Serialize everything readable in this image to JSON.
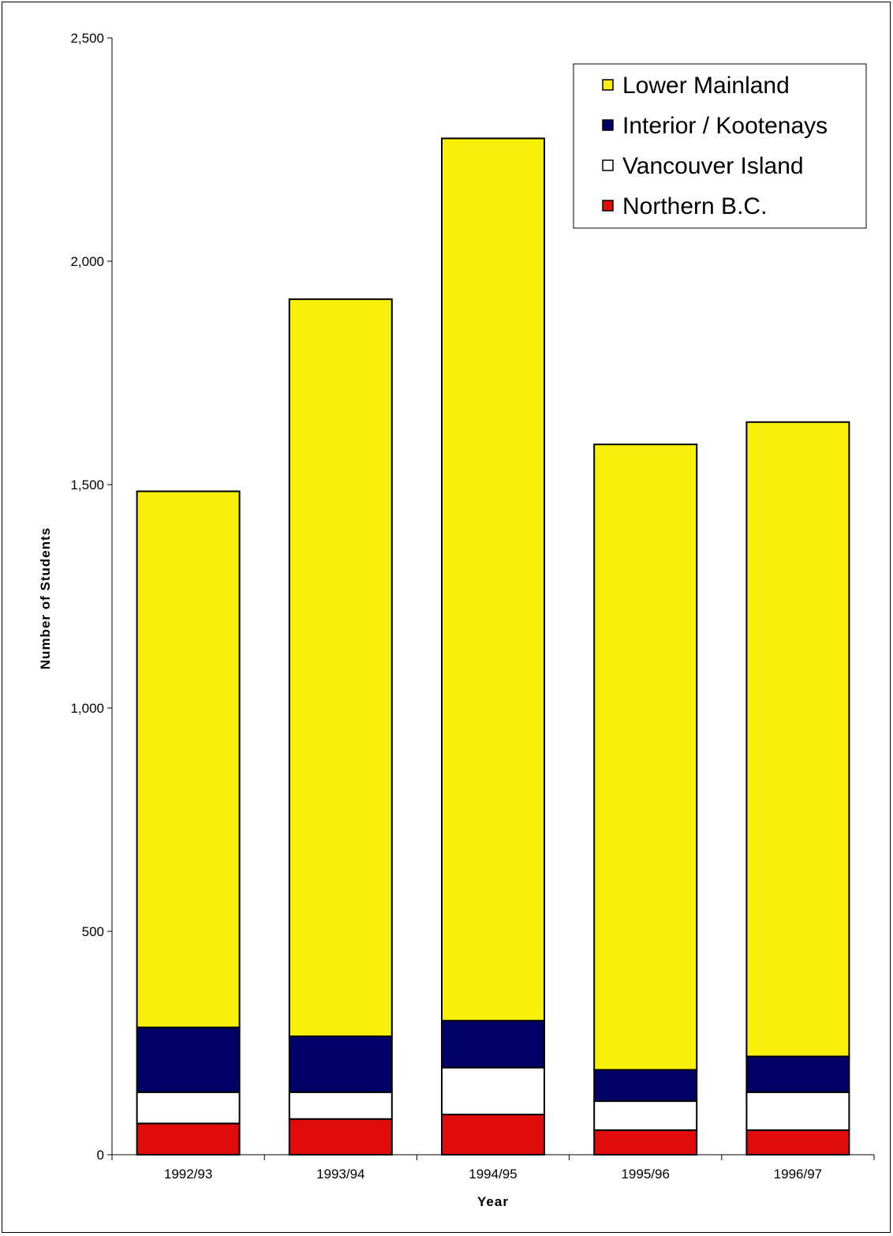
{
  "chart_data": {
    "type": "bar",
    "stacked": true,
    "title": "",
    "xlabel": "Year",
    "ylabel": "Number of Students",
    "ylim": [
      0,
      2500
    ],
    "yticks": [
      0,
      500,
      1000,
      1500,
      2000,
      2500
    ],
    "ytick_labels": [
      "0",
      "500",
      "1,000",
      "1,500",
      "2,000",
      "2,500"
    ],
    "categories": [
      "1992/93",
      "1993/94",
      "1994/95",
      "1995/96",
      "1996/97"
    ],
    "series": [
      {
        "name": "Northern B.C.",
        "color": "#e00c0c",
        "values": [
          70,
          80,
          90,
          55,
          55
        ]
      },
      {
        "name": "Vancouver Island",
        "color": "#ffffff",
        "values": [
          70,
          60,
          105,
          65,
          85
        ]
      },
      {
        "name": "Interior / Kootenays",
        "color": "#000066",
        "values": [
          145,
          125,
          105,
          70,
          80
        ]
      },
      {
        "name": "Lower Mainland",
        "color": "#f8f00a",
        "values": [
          1200,
          1650,
          1975,
          1400,
          1420
        ]
      }
    ],
    "legend_order": [
      "Lower Mainland",
      "Interior / Kootenays",
      "Vancouver Island",
      "Northern B.C."
    ],
    "legend_position": "top-right",
    "grid": false
  }
}
